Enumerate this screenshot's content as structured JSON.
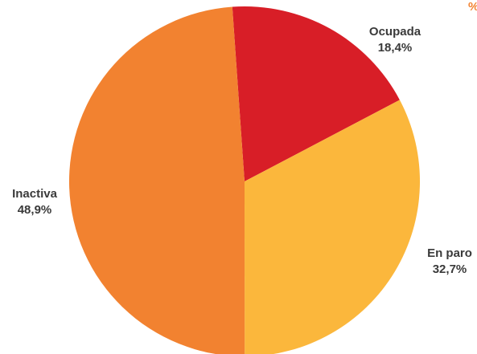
{
  "chart_data": {
    "type": "pie",
    "unit_label": "%",
    "slices": [
      {
        "label": "Ocupada",
        "value_text": "18,4%",
        "value": 18.4,
        "color": "#d81e27"
      },
      {
        "label": "En paro",
        "value_text": "32,7%",
        "value": 32.7,
        "color": "#fbb73c"
      },
      {
        "label": "Inactiva",
        "value_text": "48,9%",
        "value": 48.9,
        "color": "#f28230"
      }
    ],
    "start_angle_deg": -4,
    "direction": "clockwise",
    "unit_color": "#f28230"
  }
}
